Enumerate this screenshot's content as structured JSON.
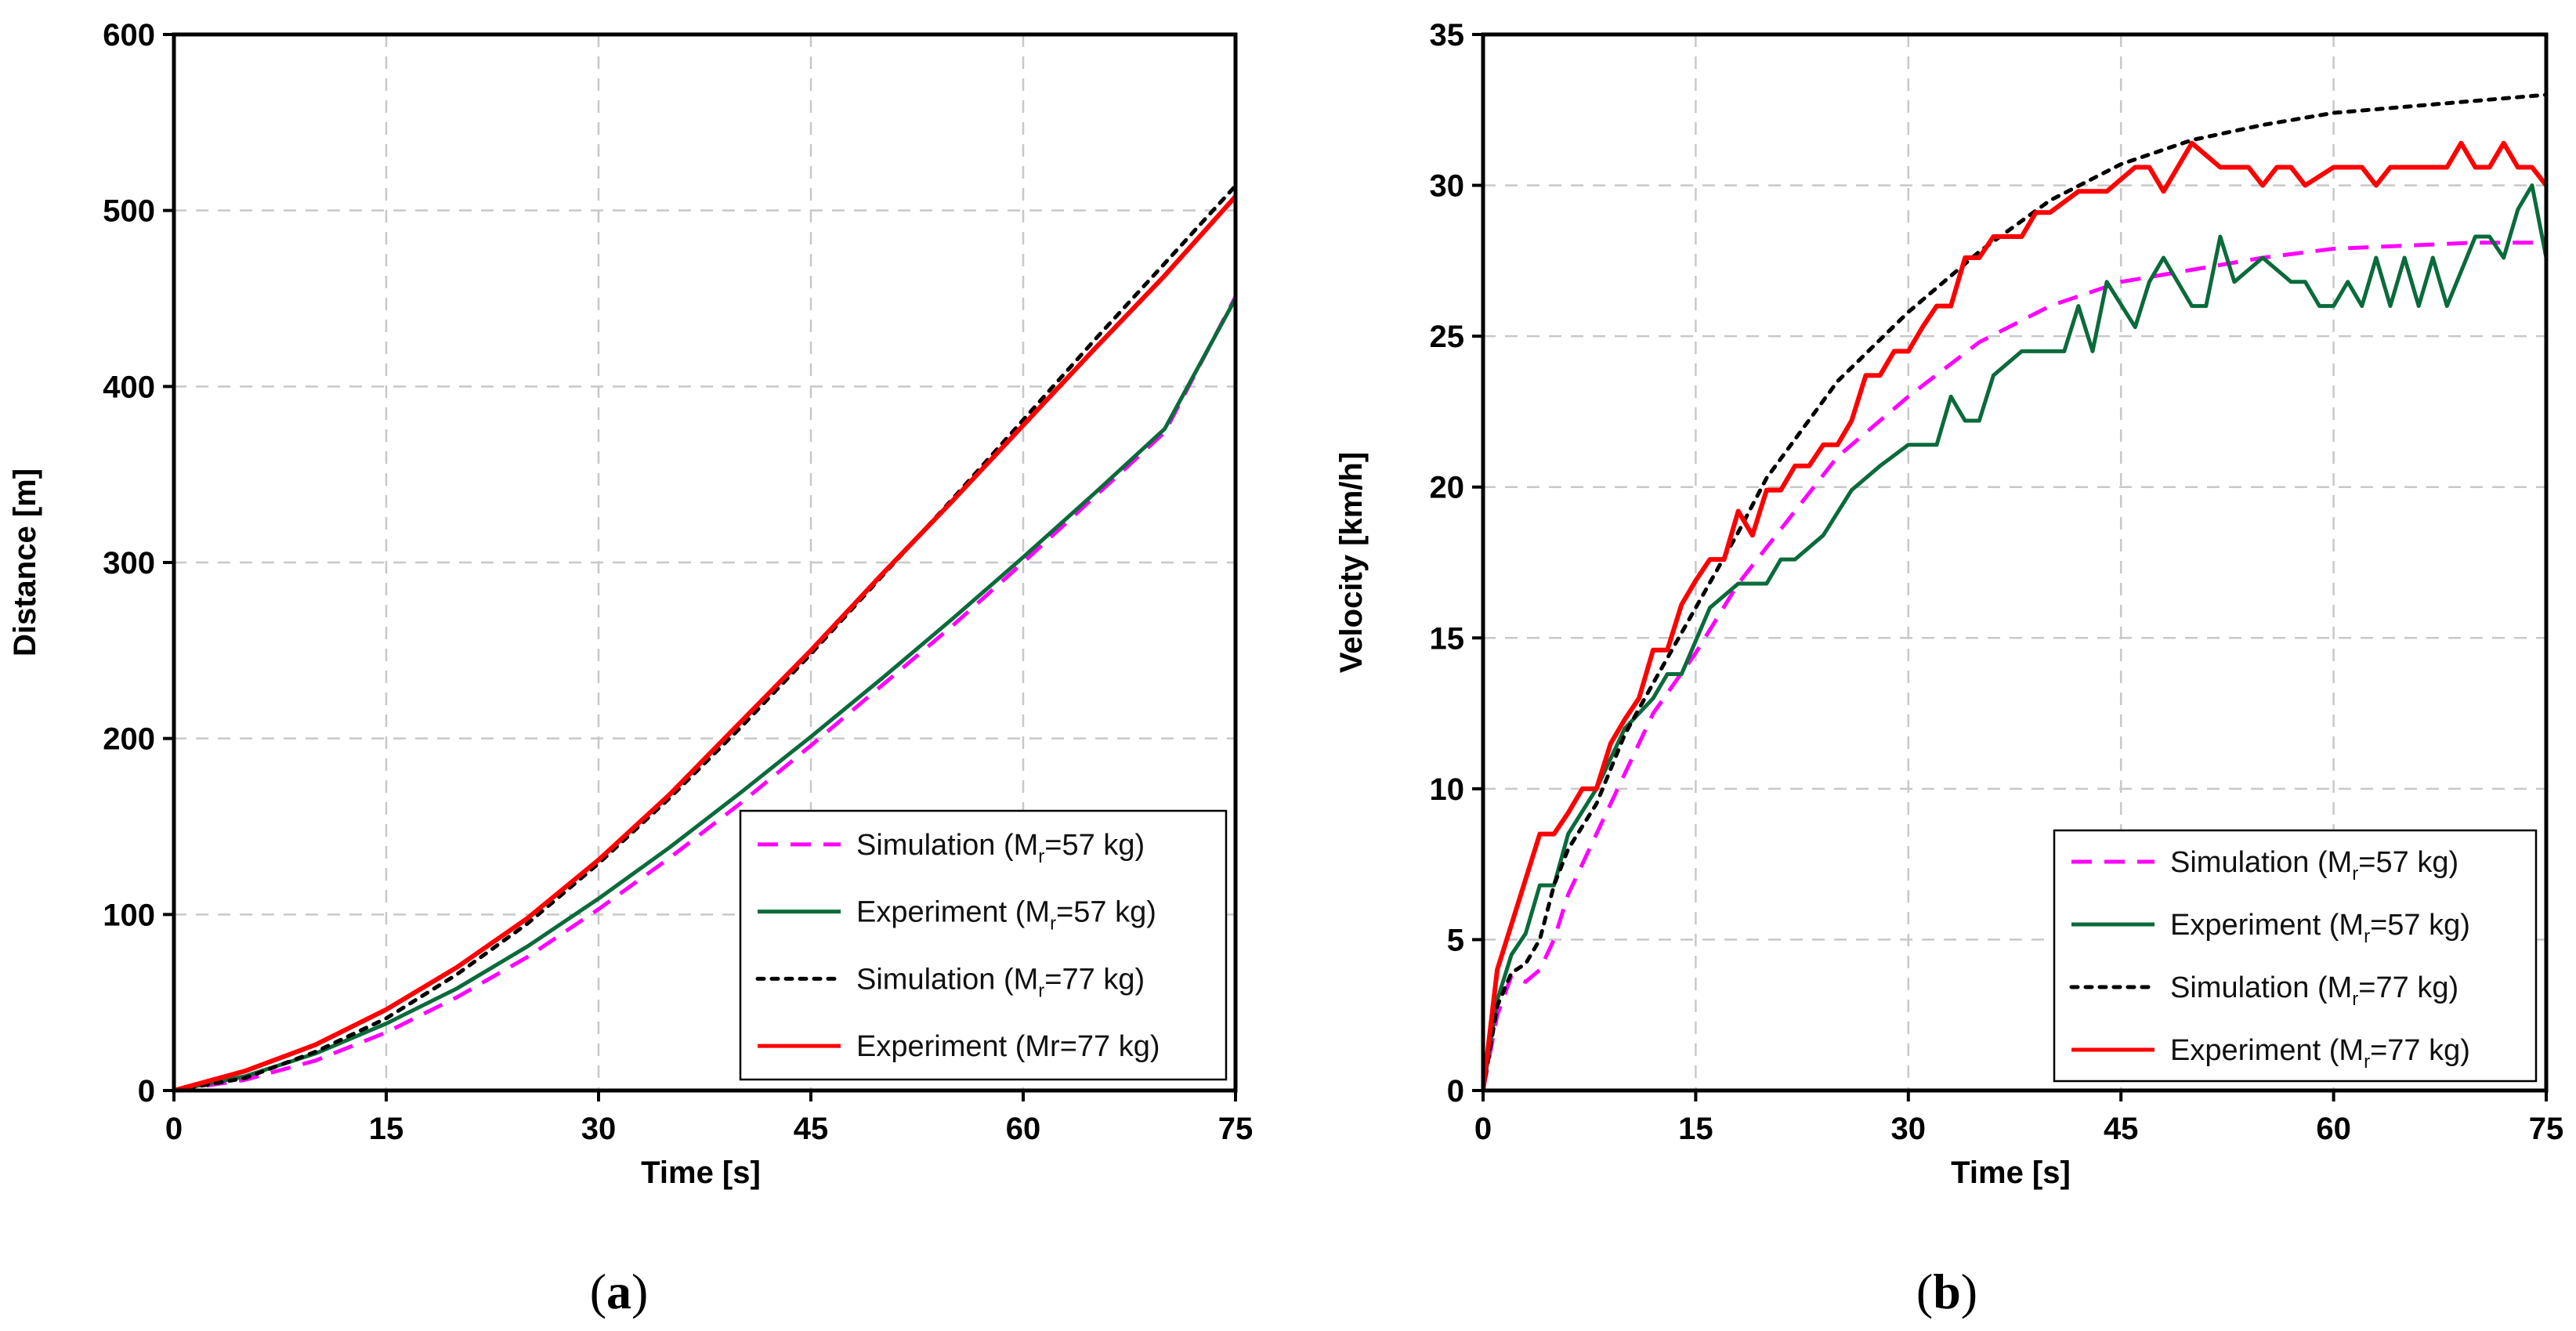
{
  "chart_data": [
    {
      "panel": "(a)",
      "panel_letter": "a",
      "type": "line",
      "xlabel": "Time [s]",
      "ylabel": "Distance [m]",
      "xlim": [
        0,
        75
      ],
      "ylim": [
        0,
        600
      ],
      "xticks": [
        0,
        15,
        30,
        45,
        60,
        75
      ],
      "yticks": [
        0,
        100,
        200,
        300,
        400,
        500,
        600
      ],
      "grid": true,
      "legend_position": "bottom-right",
      "series": [
        {
          "legend": {
            "pre": "Simulation (M",
            "sub": "r",
            "post": "=57 kg)"
          },
          "color": "#ff00ff",
          "dash": "dashed",
          "x": [
            0,
            5,
            10,
            15,
            20,
            25,
            30,
            35,
            40,
            45,
            50,
            55,
            60,
            65,
            70,
            75
          ],
          "y": [
            0,
            6,
            17,
            33,
            53,
            76,
            103,
            132,
            163,
            196,
            230,
            264,
            300,
            337,
            374,
            451
          ]
        },
        {
          "legend": {
            "pre": "Experiment (M",
            "sub": "r",
            "post": "=57 kg)"
          },
          "color": "#0a6b3a",
          "dash": "solid",
          "x": [
            0,
            5,
            10,
            15,
            20,
            25,
            30,
            35,
            40,
            45,
            50,
            55,
            60,
            65,
            70,
            75
          ],
          "y": [
            0,
            8,
            21,
            38,
            58,
            82,
            109,
            138,
            169,
            201,
            234,
            268,
            303,
            339,
            376,
            450
          ]
        },
        {
          "legend": {
            "pre": "Simulation (M",
            "sub": "r",
            "post": "=77 kg)"
          },
          "color": "#000000",
          "dash": "dotted",
          "x": [
            0,
            5,
            10,
            15,
            20,
            25,
            30,
            35,
            40,
            45,
            50,
            55,
            60,
            65,
            70,
            75
          ],
          "y": [
            0,
            7,
            22,
            41,
            66,
            95,
            129,
            166,
            206,
            248,
            292,
            336,
            381,
            426,
            470,
            514
          ]
        },
        {
          "legend": {
            "pre": "Experiment (Mr=77 kg)",
            "sub": "",
            "post": ""
          },
          "color": "#ff0000",
          "dash": "solid",
          "x": [
            0,
            5,
            10,
            15,
            20,
            25,
            30,
            35,
            40,
            45,
            50,
            55,
            60,
            65,
            70,
            75
          ],
          "y": [
            0,
            11,
            26,
            46,
            70,
            98,
            131,
            168,
            209,
            250,
            293,
            335,
            378,
            421,
            463,
            508
          ]
        }
      ]
    },
    {
      "panel": "(b)",
      "panel_letter": "b",
      "type": "line",
      "xlabel": "Time [s]",
      "ylabel": "Velocity [km/h]",
      "xlim": [
        0,
        75
      ],
      "ylim": [
        0,
        35
      ],
      "xticks": [
        0,
        15,
        30,
        45,
        60,
        75
      ],
      "yticks": [
        0,
        5,
        10,
        15,
        20,
        25,
        30,
        35
      ],
      "grid": true,
      "legend_position": "bottom-right",
      "series": [
        {
          "legend": {
            "pre": "Simulation (M",
            "sub": "r",
            "post": "=57 kg)"
          },
          "color": "#ff00ff",
          "dash": "dashed",
          "x": [
            0,
            1,
            2,
            3,
            4,
            5,
            6,
            8,
            10,
            12,
            15,
            18,
            20,
            25,
            30,
            35,
            40,
            45,
            50,
            55,
            60,
            65,
            70,
            75
          ],
          "y": [
            0,
            2.5,
            3.8,
            3.6,
            4.0,
            5.0,
            6.5,
            8.5,
            10.5,
            12.5,
            14.5,
            16.8,
            18.0,
            21.0,
            23.0,
            24.8,
            26.0,
            26.8,
            27.2,
            27.6,
            27.9,
            28.0,
            28.1,
            28.1
          ]
        },
        {
          "legend": {
            "pre": "Experiment (M",
            "sub": "r",
            "post": "=57 kg)"
          },
          "color": "#0a6b3a",
          "dash": "solid",
          "x": [
            0,
            1,
            2,
            3,
            4,
            5,
            6,
            8,
            10,
            12,
            13,
            14,
            16,
            18,
            20,
            21,
            22,
            24,
            26,
            28,
            30,
            32,
            33,
            34,
            35,
            36,
            38,
            41,
            42,
            43,
            44,
            46,
            47,
            48,
            50,
            51,
            52,
            53,
            55,
            57,
            58,
            59,
            60,
            61,
            62,
            63,
            64,
            65,
            66,
            67,
            68,
            70,
            71,
            72,
            73,
            74,
            75
          ],
          "y": [
            0,
            3.0,
            4.5,
            5.2,
            6.8,
            6.8,
            8.5,
            10.0,
            12.0,
            13.0,
            13.8,
            13.8,
            16.0,
            16.8,
            16.8,
            17.6,
            17.6,
            18.4,
            19.9,
            20.7,
            21.4,
            21.4,
            23.0,
            22.2,
            22.2,
            23.7,
            24.5,
            24.5,
            26.0,
            24.5,
            26.8,
            25.3,
            26.8,
            27.6,
            26.0,
            26.0,
            28.3,
            26.8,
            27.6,
            26.8,
            26.8,
            26.0,
            26.0,
            26.8,
            26.0,
            27.6,
            26.0,
            27.6,
            26.0,
            27.6,
            26.0,
            28.3,
            28.3,
            27.6,
            29.2,
            30.0,
            27.6
          ]
        },
        {
          "legend": {
            "pre": "Simulation (M",
            "sub": "r",
            "post": "=77 kg)"
          },
          "color": "#000000",
          "dash": "dotted",
          "x": [
            0,
            1,
            2,
            3,
            4,
            5,
            6,
            8,
            10,
            12,
            15,
            18,
            20,
            25,
            30,
            35,
            40,
            45,
            50,
            55,
            60,
            65,
            70,
            75
          ],
          "y": [
            0,
            2.8,
            3.9,
            4.2,
            5.0,
            6.8,
            8.0,
            9.5,
            11.8,
            13.5,
            16.0,
            18.5,
            20.3,
            23.5,
            25.8,
            27.8,
            29.5,
            30.7,
            31.5,
            32.0,
            32.4,
            32.6,
            32.8,
            33.0
          ]
        },
        {
          "legend": {
            "pre": "Experiment (M",
            "sub": "r",
            "post": "=77 kg)"
          },
          "color": "#ff0000",
          "dash": "solid",
          "x": [
            0,
            1,
            2,
            3,
            4,
            5,
            6,
            7,
            8,
            9,
            10,
            11,
            12,
            13,
            14,
            15,
            16,
            17,
            18,
            19,
            20,
            21,
            22,
            23,
            24,
            25,
            26,
            27,
            28,
            29,
            30,
            31,
            32,
            33,
            34,
            35,
            36,
            37,
            38,
            39,
            40,
            42,
            44,
            46,
            47,
            48,
            49,
            50,
            52,
            53,
            54,
            55,
            56,
            57,
            58,
            60,
            61,
            62,
            63,
            64,
            66,
            67,
            68,
            69,
            70,
            71,
            72,
            73,
            74,
            75
          ],
          "y": [
            0,
            4.0,
            5.5,
            7.0,
            8.5,
            8.5,
            9.2,
            10.0,
            10.0,
            11.5,
            12.3,
            13.0,
            14.6,
            14.6,
            16.1,
            16.9,
            17.6,
            17.6,
            19.2,
            18.4,
            19.9,
            19.9,
            20.7,
            20.7,
            21.4,
            21.4,
            22.2,
            23.7,
            23.7,
            24.5,
            24.5,
            25.3,
            26.0,
            26.0,
            27.6,
            27.6,
            28.3,
            28.3,
            28.3,
            29.1,
            29.1,
            29.8,
            29.8,
            30.6,
            30.6,
            29.8,
            30.6,
            31.4,
            30.6,
            30.6,
            30.6,
            30.0,
            30.6,
            30.6,
            30.0,
            30.6,
            30.6,
            30.6,
            30.0,
            30.6,
            30.6,
            30.6,
            30.6,
            31.4,
            30.6,
            30.6,
            31.4,
            30.6,
            30.6,
            30.0
          ]
        }
      ]
    }
  ]
}
